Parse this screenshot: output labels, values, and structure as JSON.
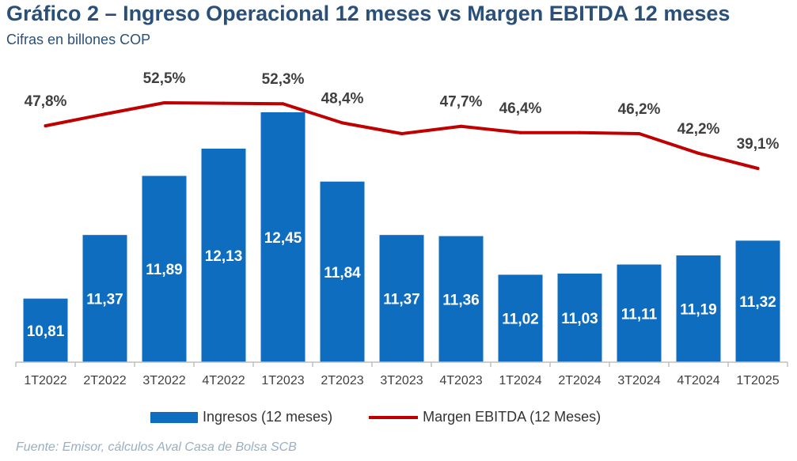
{
  "title": "Gráfico 2 – Ingreso Operacional 12 meses vs Margen EBITDA 12 meses",
  "subtitle": "Cifras en billones COP",
  "source": "Fuente: Emisor, cálculos Aval Casa de Bolsa SCB",
  "colors": {
    "bar": "#0f6dc0",
    "line": "#c00000",
    "title": "#2a4f79"
  },
  "chart_data": {
    "type": "bar",
    "categories": [
      "1T2022",
      "2T2022",
      "3T2022",
      "4T2022",
      "1T2023",
      "2T2023",
      "3T2023",
      "4T2023",
      "1T2024",
      "2T2024",
      "3T2024",
      "4T2024",
      "1T2025"
    ],
    "series": [
      {
        "name": "Ingresos (12 meses)",
        "type": "bar",
        "values": [
          10.81,
          11.37,
          11.89,
          12.13,
          12.45,
          11.84,
          11.37,
          11.36,
          11.02,
          11.03,
          11.11,
          11.19,
          11.32
        ],
        "labels": [
          "10,81",
          "11,37",
          "11,89",
          "12,13",
          "12,45",
          "11,84",
          "11,37",
          "11,36",
          "11,02",
          "11,03",
          "11,11",
          "11,19",
          "11,32"
        ]
      },
      {
        "name": "Margen EBITDA (12 Meses)",
        "type": "line",
        "values": [
          47.8,
          50.2,
          52.5,
          52.4,
          52.3,
          48.4,
          46.2,
          47.7,
          46.4,
          46.4,
          46.2,
          42.2,
          39.1
        ],
        "labels": [
          "47,8%",
          "",
          "52,5%",
          "",
          "52,3%",
          "48,4%",
          "",
          "47,7%",
          "46,4%",
          "",
          "46,2%",
          "42,2%",
          "39,1%"
        ]
      }
    ],
    "legend": "bottom",
    "grid": false
  }
}
